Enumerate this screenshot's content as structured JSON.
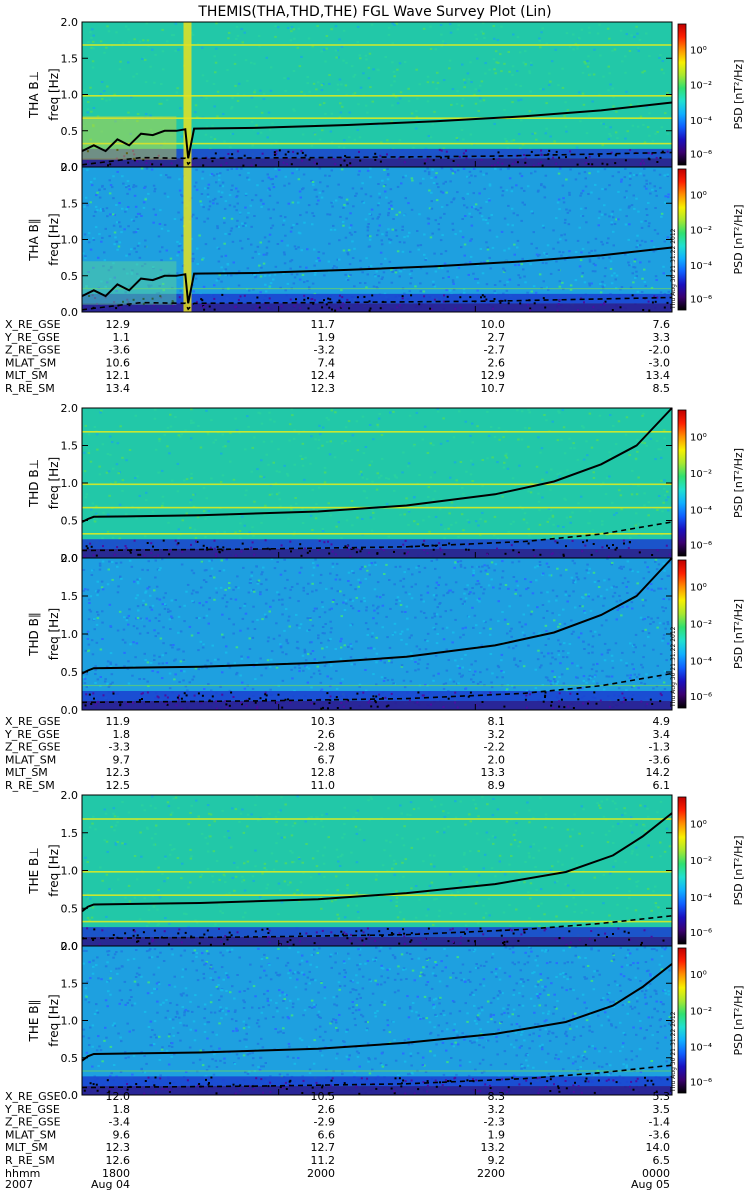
{
  "title": "THEMIS(THA,THD,THE) FGL Wave Survey Plot (Lin)",
  "timestamp_text": "Thu Aug 30 21:31:22 2012",
  "colorbar": {
    "label": "PSD [nT²/Hz]",
    "ticks": [
      "10⁰",
      "10⁻²",
      "10⁻⁴",
      "10⁻⁶"
    ],
    "colormap": [
      "#000000",
      "#3a0070",
      "#1a10c0",
      "#1060ff",
      "#10b0ff",
      "#20e0d0",
      "#30e070",
      "#a8e830",
      "#f8f000",
      "#ff9000",
      "#ff2000",
      "#c00000"
    ]
  },
  "freq_axis": {
    "label": "freq [Hz]",
    "ylim": [
      0,
      2.0
    ],
    "ticks": [
      "2.0",
      "1.5",
      "1.0",
      "0.5",
      "0.0"
    ]
  },
  "chart_data": [
    {
      "type": "heatmap",
      "probe": "THA",
      "panels": [
        "THA B⊥",
        "THA B∥"
      ],
      "ylim": [
        0,
        2.0
      ],
      "ephemeris": [
        {
          "label": "X_RE_GSE",
          "values": [
            "12.9",
            "11.7",
            "10.0",
            "7.6"
          ]
        },
        {
          "label": "Y_RE_GSE",
          "values": [
            "1.1",
            "1.9",
            "2.7",
            "3.3"
          ]
        },
        {
          "label": "Z_RE_GSE",
          "values": [
            "-3.6",
            "-3.2",
            "-2.7",
            "-2.0"
          ]
        },
        {
          "label": "MLAT_SM",
          "values": [
            "10.6",
            "7.4",
            "2.6",
            "-3.0"
          ]
        },
        {
          "label": "MLT_SM",
          "values": [
            "12.1",
            "12.4",
            "12.9",
            "13.4"
          ]
        },
        {
          "label": "R_RE_SM",
          "values": [
            "13.4",
            "12.3",
            "10.7",
            "8.5"
          ]
        }
      ],
      "fc_solid": [
        [
          0,
          0.22
        ],
        [
          0.02,
          0.3
        ],
        [
          0.04,
          0.22
        ],
        [
          0.06,
          0.38
        ],
        [
          0.08,
          0.3
        ],
        [
          0.1,
          0.46
        ],
        [
          0.12,
          0.44
        ],
        [
          0.14,
          0.5
        ],
        [
          0.16,
          0.5
        ],
        [
          0.175,
          0.52
        ],
        [
          0.18,
          0.12
        ],
        [
          0.19,
          0.53
        ],
        [
          0.3,
          0.54
        ],
        [
          0.45,
          0.58
        ],
        [
          0.6,
          0.63
        ],
        [
          0.75,
          0.7
        ],
        [
          0.88,
          0.78
        ],
        [
          1.0,
          0.89
        ]
      ],
      "fc_dashed": [
        [
          0,
          0.03
        ],
        [
          0.05,
          0.08
        ],
        [
          0.1,
          0.13
        ],
        [
          0.175,
          0.12
        ],
        [
          0.18,
          0.04
        ],
        [
          0.19,
          0.12
        ],
        [
          0.4,
          0.13
        ],
        [
          0.7,
          0.15
        ],
        [
          1.0,
          0.2
        ]
      ]
    },
    {
      "type": "heatmap",
      "probe": "THD",
      "panels": [
        "THD B⊥",
        "THD B∥"
      ],
      "ylim": [
        0,
        2.0
      ],
      "ephemeris": [
        {
          "label": "X_RE_GSE",
          "values": [
            "11.9",
            "10.3",
            "8.1",
            "4.9"
          ]
        },
        {
          "label": "Y_RE_GSE",
          "values": [
            "1.8",
            "2.6",
            "3.2",
            "3.4"
          ]
        },
        {
          "label": "Z_RE_GSE",
          "values": [
            "-3.3",
            "-2.8",
            "-2.2",
            "-1.3"
          ]
        },
        {
          "label": "MLAT_SM",
          "values": [
            "9.7",
            "6.7",
            "2.0",
            "-3.6"
          ]
        },
        {
          "label": "MLT_SM",
          "values": [
            "12.3",
            "12.8",
            "13.3",
            "14.2"
          ]
        },
        {
          "label": "R_RE_SM",
          "values": [
            "12.5",
            "11.0",
            "8.9",
            "6.1"
          ]
        }
      ],
      "fc_solid": [
        [
          0,
          0.48
        ],
        [
          0.01,
          0.52
        ],
        [
          0.02,
          0.55
        ],
        [
          0.2,
          0.57
        ],
        [
          0.4,
          0.62
        ],
        [
          0.55,
          0.7
        ],
        [
          0.7,
          0.85
        ],
        [
          0.8,
          1.02
        ],
        [
          0.88,
          1.25
        ],
        [
          0.94,
          1.5
        ],
        [
          1.0,
          2.0
        ]
      ],
      "fc_dashed": [
        [
          0,
          0.1
        ],
        [
          0.3,
          0.12
        ],
        [
          0.55,
          0.15
        ],
        [
          0.75,
          0.22
        ],
        [
          0.88,
          0.32
        ],
        [
          1.0,
          0.48
        ]
      ]
    },
    {
      "type": "heatmap",
      "probe": "THE",
      "panels": [
        "THE B⊥",
        "THE B∥"
      ],
      "ylim": [
        0,
        2.0
      ],
      "ephemeris": [
        {
          "label": "X_RE_GSE",
          "values": [
            "12.0",
            "10.5",
            "8.3",
            "5.3"
          ]
        },
        {
          "label": "Y_RE_GSE",
          "values": [
            "1.8",
            "2.6",
            "3.2",
            "3.5"
          ]
        },
        {
          "label": "Z_RE_GSE",
          "values": [
            "-3.4",
            "-2.9",
            "-2.3",
            "-1.4"
          ]
        },
        {
          "label": "MLAT_SM",
          "values": [
            "9.6",
            "6.6",
            "1.9",
            "-3.6"
          ]
        },
        {
          "label": "MLT_SM",
          "values": [
            "12.3",
            "12.7",
            "13.2",
            "14.0"
          ]
        },
        {
          "label": "R_RE_SM",
          "values": [
            "12.6",
            "11.2",
            "9.2",
            "6.5"
          ]
        }
      ],
      "fc_solid": [
        [
          0,
          0.46
        ],
        [
          0.01,
          0.52
        ],
        [
          0.02,
          0.55
        ],
        [
          0.2,
          0.57
        ],
        [
          0.4,
          0.62
        ],
        [
          0.55,
          0.7
        ],
        [
          0.7,
          0.82
        ],
        [
          0.82,
          0.98
        ],
        [
          0.9,
          1.2
        ],
        [
          0.95,
          1.45
        ],
        [
          1.0,
          1.76
        ]
      ],
      "fc_dashed": [
        [
          0,
          0.1
        ],
        [
          0.3,
          0.12
        ],
        [
          0.55,
          0.15
        ],
        [
          0.75,
          0.22
        ],
        [
          0.88,
          0.3
        ],
        [
          1.0,
          0.4
        ]
      ]
    }
  ],
  "time_axis": {
    "label": "hhmm",
    "ticks": [
      "1800",
      "2000",
      "2200",
      "0000"
    ],
    "date_label": "2007",
    "dates": [
      "Aug 04",
      "",
      "",
      "Aug 05"
    ]
  }
}
